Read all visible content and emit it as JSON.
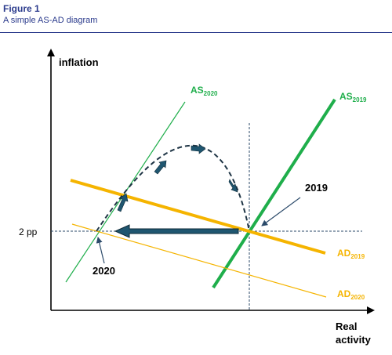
{
  "figure": {
    "label": "Figure 1",
    "title": "A simple AS-AD diagram"
  },
  "axes": {
    "y_label": "inflation",
    "x_label_line1": "Real",
    "x_label_line2": "activity",
    "y_tick": "2 pp"
  },
  "curves": {
    "as2020": {
      "base": "AS",
      "sub": "2020",
      "color": "#1fae4b"
    },
    "as2019": {
      "base": "AS",
      "sub": "2019",
      "color": "#1fae4b"
    },
    "ad2019": {
      "base": "AD",
      "sub": "2019",
      "color": "#f5b400"
    },
    "ad2020": {
      "base": "AD",
      "sub": "2020",
      "color": "#f5b400"
    }
  },
  "annotations": {
    "point_2019": "2019",
    "point_2020": "2020"
  },
  "colors": {
    "arrow_fill": "#1f5670",
    "guide": "#2b4a6a",
    "axis": "#000000",
    "header": "#2a3a8c"
  }
}
